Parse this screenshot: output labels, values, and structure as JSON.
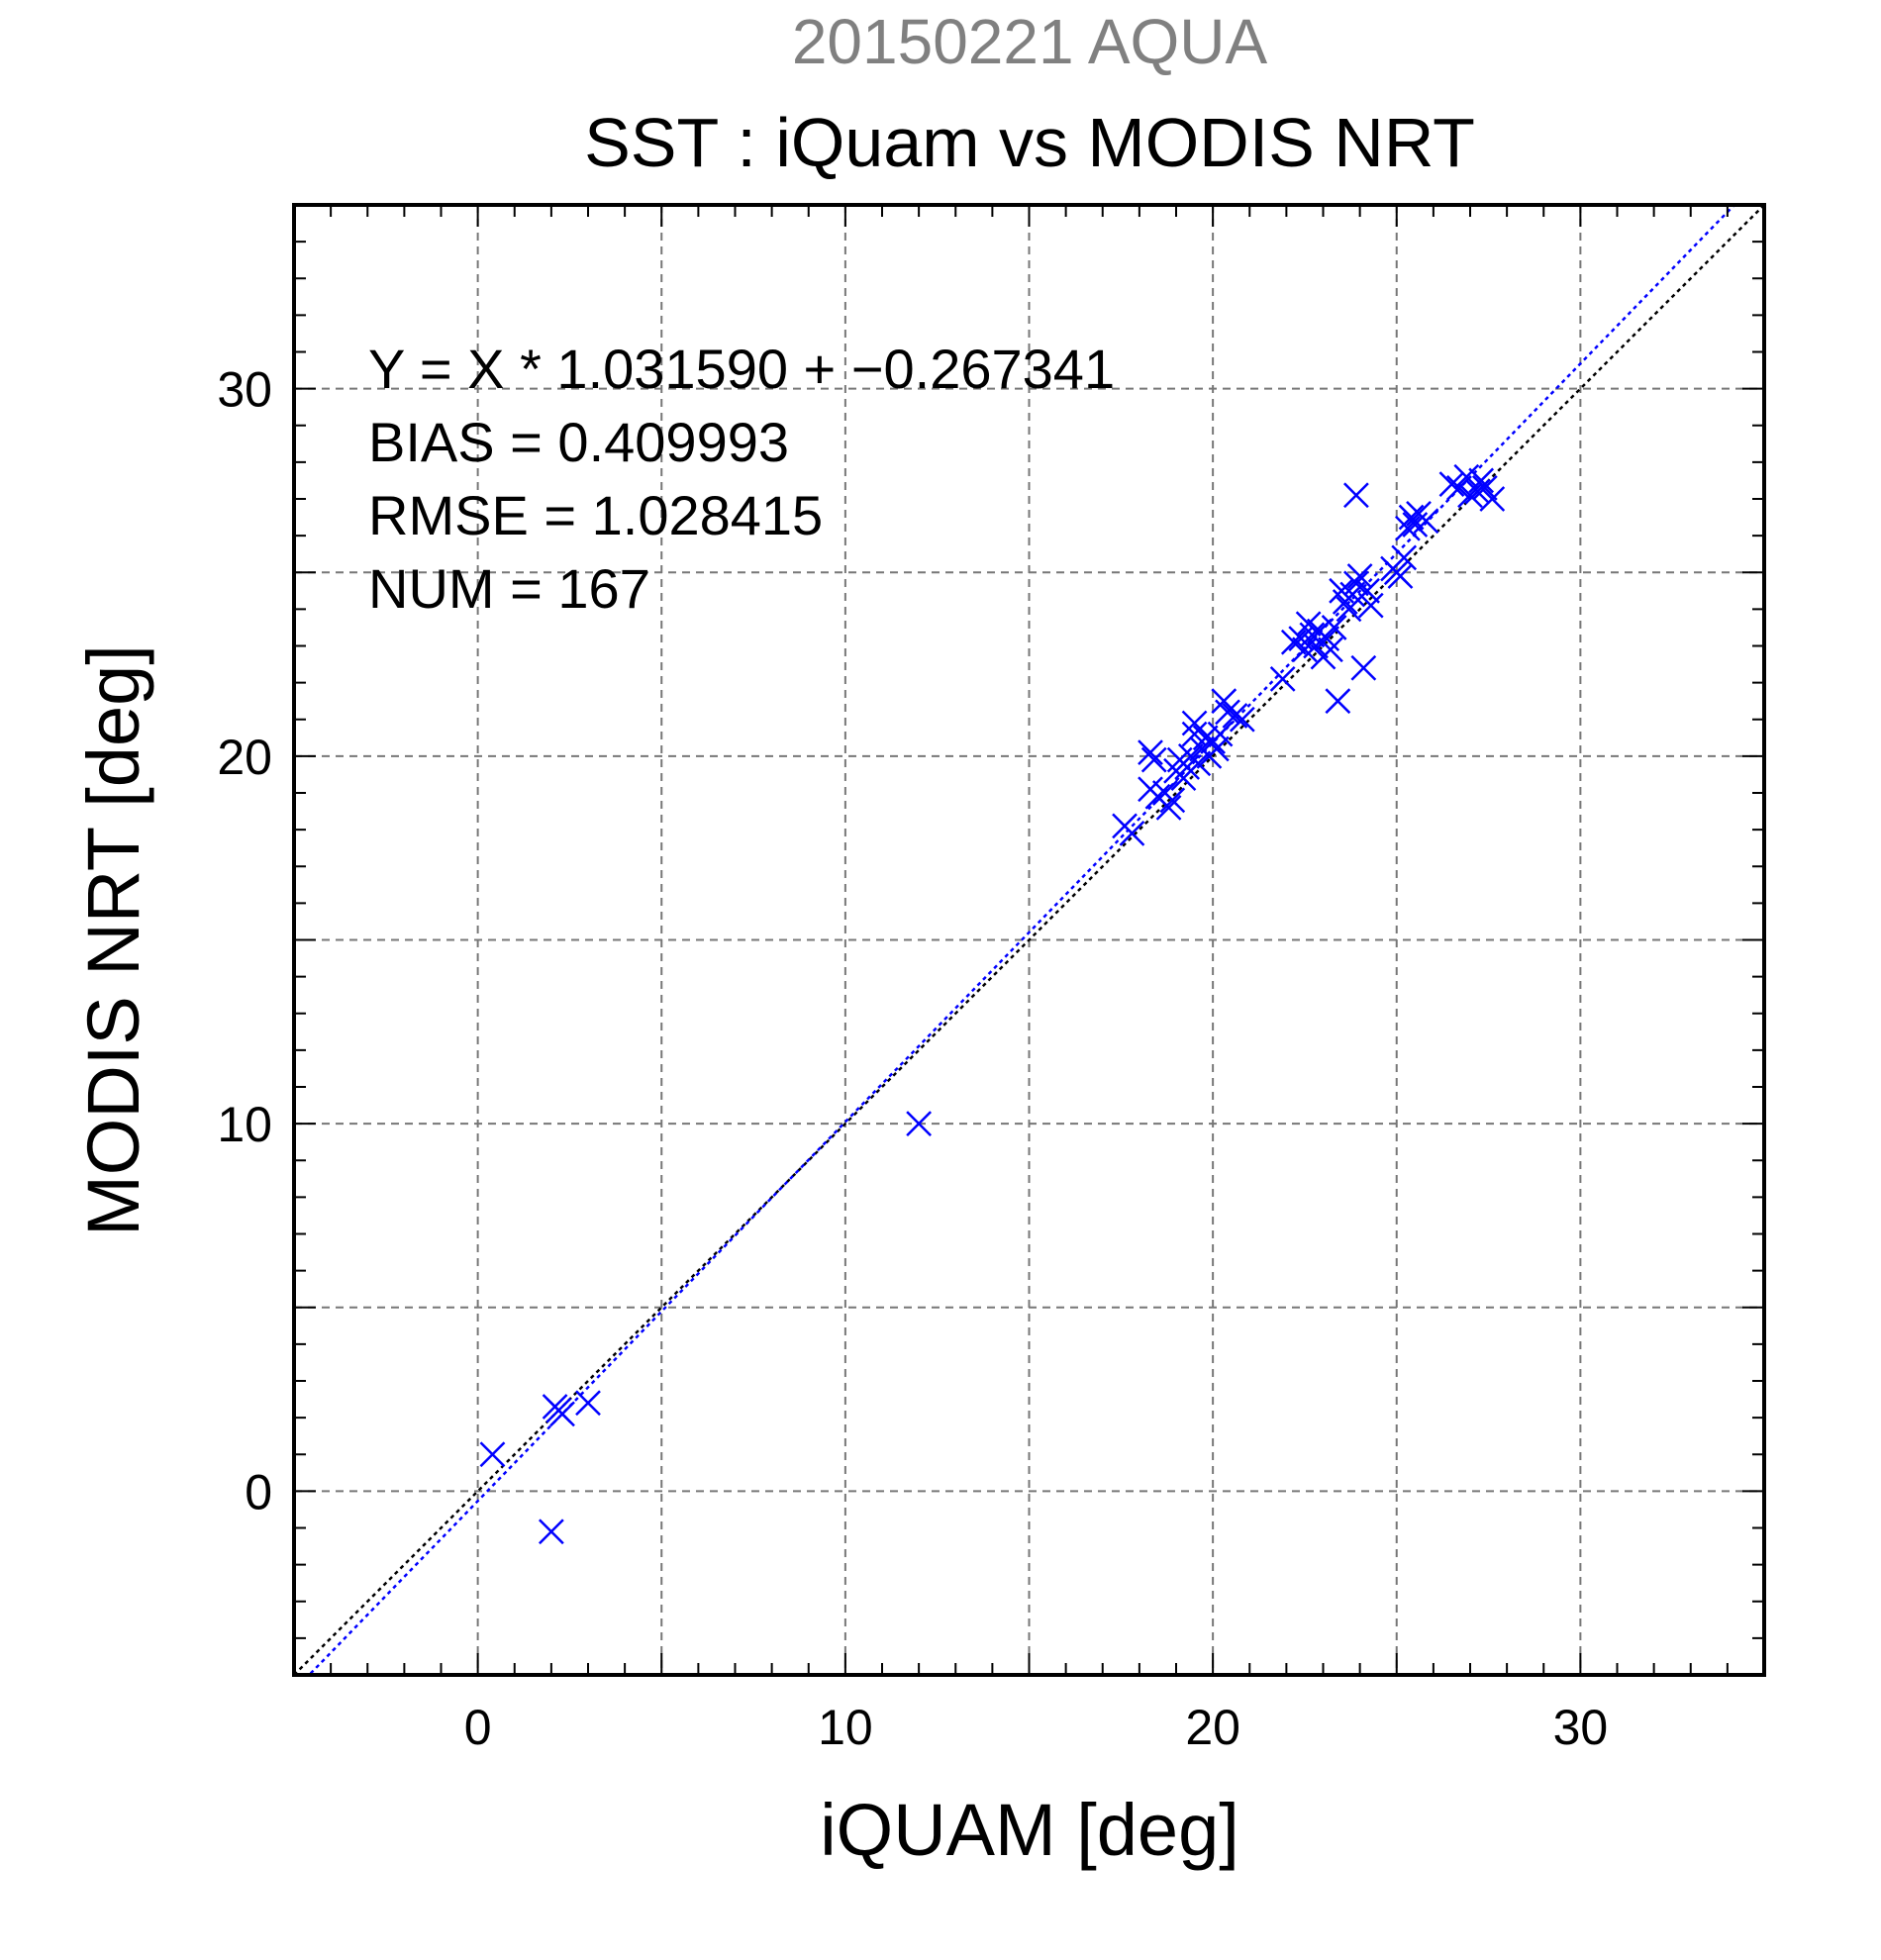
{
  "chart_data": {
    "type": "scatter",
    "title_top": "20150221 AQUA",
    "title": "SST : iQuam vs MODIS NRT",
    "xlabel": "iQUAM [deg]",
    "ylabel": "MODIS NRT [deg]",
    "xlim": [
      -5,
      35
    ],
    "ylim": [
      -5,
      35
    ],
    "xticks": [
      0,
      10,
      20,
      30
    ],
    "yticks": [
      0,
      10,
      20,
      30
    ],
    "xtick_labels": [
      "0",
      "10",
      "20",
      "30"
    ],
    "ytick_labels": [
      "0",
      "10",
      "20",
      "30"
    ],
    "grid": true,
    "stats": [
      "Y = X * 1.031590 + −0.267341",
      "BIAS = 0.409993",
      "RMSE = 1.028415",
      "NUM = 167"
    ],
    "fit_line": {
      "slope": 1.03159,
      "intercept": -0.267341,
      "color": "#0000ff"
    },
    "identity_line": {
      "slope": 1,
      "intercept": 0,
      "color": "#000000"
    },
    "marker_color": "#0000ff",
    "marker": "x",
    "points": [
      [
        0.4,
        1.0
      ],
      [
        2.0,
        -1.1
      ],
      [
        2.1,
        2.3
      ],
      [
        2.2,
        2.2
      ],
      [
        2.3,
        2.1
      ],
      [
        3.0,
        2.4
      ],
      [
        12.0,
        10.0
      ],
      [
        17.6,
        18.1
      ],
      [
        17.8,
        17.9
      ],
      [
        18.3,
        20.1
      ],
      [
        18.4,
        19.9
      ],
      [
        18.3,
        19.1
      ],
      [
        18.5,
        18.9
      ],
      [
        18.7,
        19.0
      ],
      [
        18.8,
        18.6
      ],
      [
        18.9,
        18.8
      ],
      [
        19.0,
        19.6
      ],
      [
        19.1,
        19.9
      ],
      [
        19.2,
        19.4
      ],
      [
        19.3,
        19.7
      ],
      [
        19.4,
        20.0
      ],
      [
        19.5,
        20.9
      ],
      [
        19.5,
        20.6
      ],
      [
        19.6,
        19.8
      ],
      [
        19.7,
        20.2
      ],
      [
        19.8,
        20.5
      ],
      [
        19.9,
        20.0
      ],
      [
        20.0,
        20.4
      ],
      [
        20.1,
        20.2
      ],
      [
        20.2,
        20.6
      ],
      [
        20.3,
        21.5
      ],
      [
        20.4,
        21.2
      ],
      [
        20.6,
        21.1
      ],
      [
        20.8,
        21.0
      ],
      [
        21.9,
        22.1
      ],
      [
        22.2,
        23.1
      ],
      [
        22.4,
        23.2
      ],
      [
        22.5,
        22.9
      ],
      [
        22.6,
        23.6
      ],
      [
        22.7,
        23.3
      ],
      [
        22.8,
        23.0
      ],
      [
        22.9,
        23.4
      ],
      [
        23.0,
        22.7
      ],
      [
        23.1,
        23.2
      ],
      [
        23.2,
        22.9
      ],
      [
        23.3,
        23.5
      ],
      [
        23.4,
        21.5
      ],
      [
        23.5,
        24.5
      ],
      [
        23.6,
        24.2
      ],
      [
        23.7,
        24.0
      ],
      [
        23.8,
        24.4
      ],
      [
        23.9,
        27.1
      ],
      [
        23.9,
        24.7
      ],
      [
        24.0,
        24.9
      ],
      [
        24.1,
        22.4
      ],
      [
        24.2,
        24.5
      ],
      [
        24.3,
        24.1
      ],
      [
        24.9,
        25.1
      ],
      [
        25.0,
        25.0
      ],
      [
        25.1,
        24.9
      ],
      [
        25.2,
        25.4
      ],
      [
        25.3,
        26.2
      ],
      [
        25.4,
        26.5
      ],
      [
        25.5,
        26.3
      ],
      [
        25.6,
        26.6
      ],
      [
        25.8,
        26.4
      ],
      [
        26.5,
        27.4
      ],
      [
        26.7,
        27.3
      ],
      [
        26.9,
        27.6
      ],
      [
        27.0,
        27.1
      ],
      [
        27.2,
        27.2
      ],
      [
        27.3,
        27.5
      ],
      [
        27.4,
        27.3
      ],
      [
        27.6,
        27.0
      ]
    ]
  }
}
